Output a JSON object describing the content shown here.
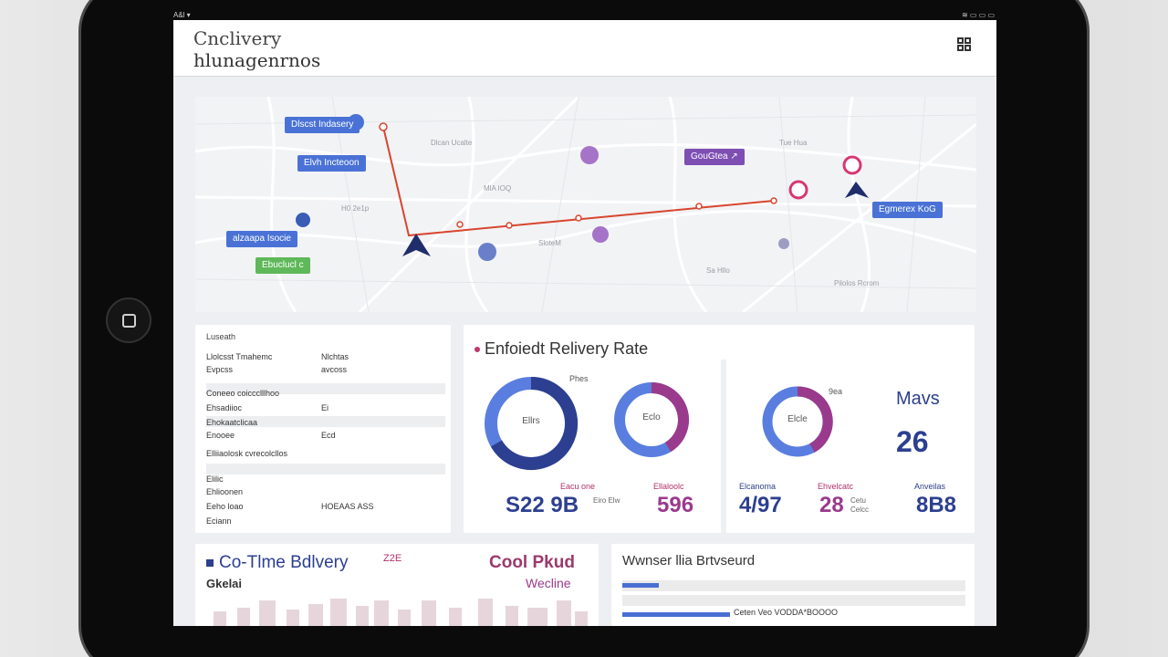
{
  "status_bar": {
    "left": "A&l ▾",
    "right": "≋ ▭ ▭ ▭"
  },
  "header": {
    "title_line1": "Cnclivery",
    "title_line2": "hlunagenrnos",
    "menu_icon": "grid-icon"
  },
  "map": {
    "labels": [
      {
        "text": "Dlscst Indasery",
        "color": "#4a72d6"
      },
      {
        "text": "Elvh Incteoon",
        "color": "#4a72d6"
      },
      {
        "text": "alzaapa Isocie",
        "color": "#4a72d6"
      },
      {
        "text": "Ebuclucl c",
        "color": "#5fb85a"
      },
      {
        "text": "GouGtea ↗",
        "color": "#7d4fb3"
      },
      {
        "text": "Egmerex KoG",
        "color": "#4a72d6"
      }
    ],
    "small_labels": [
      "Dlcan Ucalte",
      "H0 2e1p",
      "MlA IOQ",
      "SloteM",
      "Tue Hua",
      "Sa Hllo",
      "Pilolos Rcrom"
    ],
    "route_color": "#d8452e"
  },
  "details": {
    "heading": "Luseath",
    "rows": [
      {
        "label": "Llolcsst Tmahemc",
        "value": "Nlchtas"
      },
      {
        "label": "Evpcss",
        "value": "avcoss"
      },
      {
        "label": "Coneeo coiccclllhoo",
        "value": ""
      },
      {
        "label": "Ehsadiioc",
        "value": "Ei"
      },
      {
        "label": "Ehokaatclicaa",
        "value": ""
      },
      {
        "label": "Enooee",
        "value": "Ecd"
      },
      {
        "label": "Elliiaolosk cvrecolcllos",
        "value": ""
      },
      {
        "label": "Elilic",
        "value": ""
      },
      {
        "label": "Ehlioonen",
        "value": ""
      },
      {
        "label": "Eeho loao",
        "value": "HOEAAS ASS"
      },
      {
        "label": "Eciann",
        "value": ""
      }
    ]
  },
  "rate": {
    "title": "Enfoiedt Relivery Rate",
    "donut1_center": "Ellrs",
    "donut2_center": "Eclo",
    "donut3_center": "Elcle",
    "caption_pills": "Phes",
    "caption_third": "9ea",
    "stats": [
      {
        "label": "Eacu one",
        "value": "S22 9B",
        "unit": "Eiro Elw"
      },
      {
        "label": "Ellaloolc",
        "value": "596",
        "unit": ""
      },
      {
        "label": "Elcanoma",
        "value": "4/97",
        "unit": ""
      },
      {
        "label": "Ehvelcatc",
        "value": "28",
        "unit": "Cetu Celcc"
      },
      {
        "label": "Anveilas",
        "value": "8B8",
        "unit": ""
      }
    ],
    "mavs_title": "Mavs",
    "mavs_value": "26",
    "colors": {
      "blue": "#2c3f90",
      "light_blue": "#5a7ee0",
      "purple": "#9a3a8c"
    }
  },
  "ontime": {
    "title": "Co-Tlme Bdlvery",
    "badge": "Z2E",
    "subtitle": "Gkelai",
    "cool_title": "Cool Pkud",
    "cool_sub": "Wecline"
  },
  "bars": {
    "title": "Wwnser llia Brtvseurd",
    "bar_label": "Ceten Veo VODDA*BOOOO"
  }
}
